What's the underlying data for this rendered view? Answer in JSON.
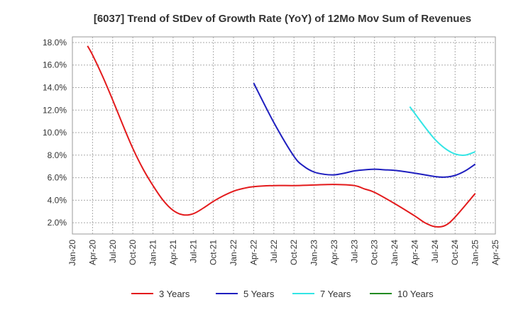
{
  "chart_data": {
    "type": "line",
    "title": "[6037]  Trend of StDev of Growth Rate (YoY) of 12Mo Mov Sum of Revenues",
    "xlabel": "",
    "ylabel": "",
    "x_tick_labels": [
      "Jan-20",
      "Apr-20",
      "Jul-20",
      "Oct-20",
      "Jan-21",
      "Apr-21",
      "Jul-21",
      "Oct-21",
      "Jan-22",
      "Apr-22",
      "Jul-22",
      "Oct-22",
      "Jan-23",
      "Apr-23",
      "Jul-23",
      "Oct-23",
      "Jan-24",
      "Apr-24",
      "Jul-24",
      "Oct-24",
      "Jan-25",
      "Apr-25"
    ],
    "y_tick_labels": [
      "2.0%",
      "4.0%",
      "6.0%",
      "8.0%",
      "10.0%",
      "12.0%",
      "14.0%",
      "16.0%",
      "18.0%"
    ],
    "y_ticks": [
      2,
      4,
      6,
      8,
      10,
      12,
      14,
      16,
      18
    ],
    "ylim": [
      1.0,
      18.5
    ],
    "x_index_range": [
      0,
      21
    ],
    "grid": true,
    "legend_position": "bottom",
    "series": [
      {
        "name": "3 Years",
        "color": "#e31a1c",
        "x": [
          0.75,
          1,
          1.5,
          2,
          2.5,
          3,
          3.5,
          4,
          4.5,
          5,
          5.5,
          6,
          6.5,
          7,
          7.5,
          8,
          8.5,
          9,
          10,
          11,
          12,
          13,
          14,
          14.5,
          15,
          16,
          17,
          17.5,
          18,
          18.5,
          19,
          20
        ],
        "values": [
          17.7,
          16.9,
          15.0,
          12.9,
          10.7,
          8.6,
          6.8,
          5.3,
          4.0,
          3.1,
          2.7,
          2.8,
          3.3,
          3.9,
          4.4,
          4.8,
          5.05,
          5.2,
          5.3,
          5.3,
          5.35,
          5.4,
          5.3,
          5.0,
          4.7,
          3.7,
          2.6,
          2.0,
          1.65,
          1.75,
          2.5,
          4.6
        ]
      },
      {
        "name": "5 Years",
        "color": "#1f1fbf",
        "x": [
          9,
          10,
          11,
          11.5,
          12,
          12.5,
          13,
          13.5,
          14,
          14.5,
          15,
          15.5,
          16,
          17,
          18,
          18.5,
          19,
          19.5,
          20
        ],
        "values": [
          14.4,
          10.9,
          7.9,
          7.0,
          6.5,
          6.3,
          6.25,
          6.4,
          6.6,
          6.7,
          6.75,
          6.7,
          6.65,
          6.4,
          6.1,
          6.05,
          6.2,
          6.6,
          7.2
        ]
      },
      {
        "name": "7 Years",
        "color": "#33e5e5",
        "x": [
          16.75,
          17,
          17.5,
          18,
          18.5,
          19,
          19.5,
          20
        ],
        "values": [
          12.3,
          11.7,
          10.5,
          9.4,
          8.6,
          8.1,
          8.0,
          8.3
        ]
      },
      {
        "name": "10 Years",
        "color": "#228b22",
        "x": [],
        "values": []
      }
    ]
  }
}
